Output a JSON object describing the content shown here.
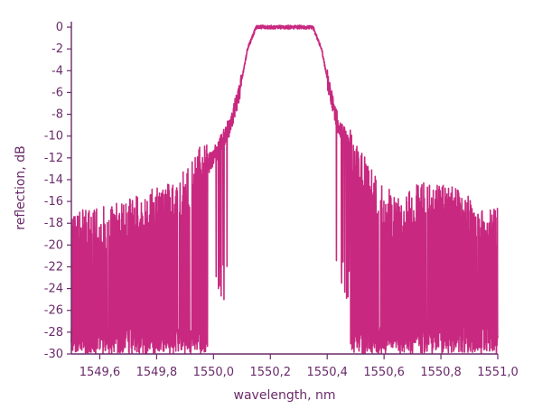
{
  "chart_data": {
    "type": "line",
    "title": "",
    "xlabel": "wavelength, nm",
    "ylabel": "reflection, dB",
    "xlim": [
      1549.5,
      1551.0
    ],
    "ylim": [
      -30,
      0.5
    ],
    "x_ticks": [
      1549.6,
      1549.8,
      1550.0,
      1550.2,
      1550.4,
      1550.6,
      1550.8,
      1551.0
    ],
    "x_tick_labels": [
      "1549,6",
      "1549,8",
      "1550,0",
      "1550,2",
      "1550,4",
      "1550,6",
      "1550,8",
      "1551,0"
    ],
    "y_ticks": [
      0,
      -2,
      -4,
      -6,
      -8,
      -10,
      -12,
      -14,
      -16,
      -18,
      -20,
      -22,
      -24,
      -26,
      -28,
      -30
    ],
    "y_tick_labels": [
      "0",
      "-2",
      "-4",
      "-6",
      "-8",
      "-10",
      "-12",
      "-14",
      "-16",
      "-18",
      "-20",
      "-22",
      "-24",
      "-26",
      "-28",
      "-30"
    ],
    "grid": false,
    "legend": "none",
    "colors": {
      "line": "#c8287f",
      "axis": "#6a2b6a",
      "text": "#6a2b6a"
    },
    "series": [
      {
        "x": [
          1549.5,
          1549.55,
          1549.6,
          1549.65,
          1549.7,
          1549.75,
          1549.8,
          1549.85,
          1549.9,
          1549.95,
          1550.0,
          1550.03,
          1550.06,
          1550.09,
          1550.12,
          1550.15,
          1550.2,
          1550.25,
          1550.3,
          1550.35,
          1550.38,
          1550.41,
          1550.44,
          1550.47,
          1550.5,
          1550.55,
          1550.6,
          1550.65,
          1550.7,
          1550.75,
          1550.8,
          1550.85,
          1550.9,
          1550.95,
          1551.0
        ],
        "y": [
          -20,
          -19,
          -19,
          -18.5,
          -18,
          -17.5,
          -17,
          -16.5,
          -15.5,
          -13.5,
          -12,
          -10.5,
          -9,
          -6,
          -2,
          0,
          0,
          0,
          0,
          0,
          -2,
          -6,
          -9,
          -10.5,
          -13,
          -15,
          -17,
          -18,
          -17,
          -16.5,
          -17,
          -17,
          -18,
          -19,
          -19
        ]
      }
    ]
  }
}
